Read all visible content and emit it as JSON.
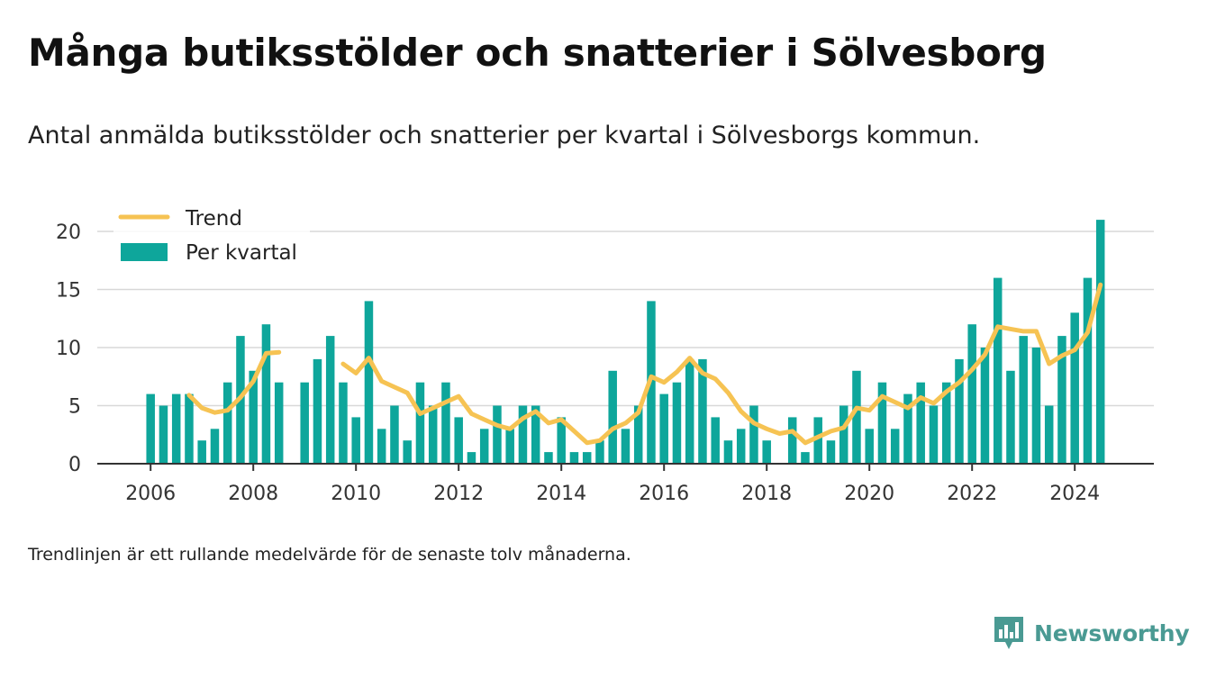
{
  "title": "Många butiksstölder och snatterier i Sölvesborg",
  "subtitle": "Antal anmälda butiksstölder och snatterier per kvartal i Sölvesborgs kommun.",
  "note": "Trendlinjen är ett rullande medelvärde för de senaste tolv månaderna.",
  "brand": "Newsworthy",
  "colors": {
    "bar": "#0ea69b",
    "trend": "#f6c353",
    "grid": "#d8d8d8",
    "brand": "#4a9a93"
  },
  "chart_data": {
    "type": "bar",
    "grid": true,
    "legend_placement": "top-left",
    "ylim": [
      0,
      21
    ],
    "yticks": [
      0,
      5,
      10,
      15,
      20
    ],
    "xticks": [
      "2006",
      "2008",
      "2010",
      "2012",
      "2014",
      "2016",
      "2018",
      "2020",
      "2022",
      "2024"
    ],
    "legend": {
      "trend": "Trend",
      "bars": "Per kvartal"
    },
    "categories": [
      "2006 Q1",
      "2006 Q2",
      "2006 Q3",
      "2006 Q4",
      "2007 Q1",
      "2007 Q2",
      "2007 Q3",
      "2007 Q4",
      "2008 Q1",
      "2008 Q2",
      "2008 Q3",
      "2008 Q4",
      "2009 Q1",
      "2009 Q2",
      "2009 Q3",
      "2009 Q4",
      "2010 Q1",
      "2010 Q2",
      "2010 Q3",
      "2010 Q4",
      "2011 Q1",
      "2011 Q2",
      "2011 Q3",
      "2011 Q4",
      "2012 Q1",
      "2012 Q2",
      "2012 Q3",
      "2012 Q4",
      "2013 Q1",
      "2013 Q2",
      "2013 Q3",
      "2013 Q4",
      "2014 Q1",
      "2014 Q2",
      "2014 Q3",
      "2014 Q4",
      "2015 Q1",
      "2015 Q2",
      "2015 Q3",
      "2015 Q4",
      "2016 Q1",
      "2016 Q2",
      "2016 Q3",
      "2016 Q4",
      "2017 Q1",
      "2017 Q2",
      "2017 Q3",
      "2017 Q4",
      "2018 Q1",
      "2018 Q2",
      "2018 Q3",
      "2018 Q4",
      "2019 Q1",
      "2019 Q2",
      "2019 Q3",
      "2019 Q4",
      "2020 Q1",
      "2020 Q2",
      "2020 Q3",
      "2020 Q4",
      "2021 Q1",
      "2021 Q2",
      "2021 Q3",
      "2021 Q4",
      "2022 Q1",
      "2022 Q2",
      "2022 Q3",
      "2022 Q4",
      "2023 Q1",
      "2023 Q2",
      "2023 Q3",
      "2023 Q4",
      "2024 Q1",
      "2024 Q2",
      "2024 Q3"
    ],
    "series": [
      {
        "name": "Per kvartal",
        "values": [
          6,
          5,
          6,
          6,
          2,
          3,
          7,
          11,
          8,
          12,
          7,
          null,
          7,
          9,
          11,
          7,
          4,
          14,
          3,
          5,
          2,
          7,
          5,
          7,
          4,
          1,
          3,
          5,
          3,
          5,
          5,
          1,
          4,
          1,
          1,
          2,
          8,
          3,
          5,
          14,
          6,
          7,
          9,
          9,
          4,
          2,
          3,
          5,
          2,
          null,
          4,
          1,
          4,
          2,
          5,
          8,
          3,
          7,
          3,
          6,
          7,
          5,
          7,
          9,
          12,
          10,
          16,
          8,
          11,
          10,
          5,
          11,
          13,
          16,
          21
        ]
      },
      {
        "name": "Trend",
        "values": [
          null,
          null,
          null,
          5.9,
          4.8,
          4.4,
          4.6,
          5.7,
          7.1,
          9.5,
          9.6,
          null,
          null,
          null,
          null,
          8.6,
          7.8,
          9.1,
          7.1,
          6.6,
          6.1,
          4.3,
          4.8,
          5.3,
          5.8,
          4.3,
          3.8,
          3.3,
          3.0,
          3.9,
          4.5,
          3.5,
          3.8,
          2.8,
          1.8,
          2.0,
          3.0,
          3.5,
          4.4,
          7.5,
          7.0,
          7.9,
          9.1,
          7.8,
          7.3,
          6.1,
          4.5,
          3.5,
          3.0,
          2.6,
          2.8,
          1.8,
          2.3,
          2.8,
          3.1,
          4.8,
          4.6,
          5.8,
          5.3,
          4.8,
          5.7,
          5.2,
          6.2,
          7.0,
          8.1,
          9.4,
          11.8,
          11.6,
          11.4,
          11.4,
          8.6,
          9.3,
          9.8,
          11.3,
          15.4
        ]
      }
    ]
  }
}
